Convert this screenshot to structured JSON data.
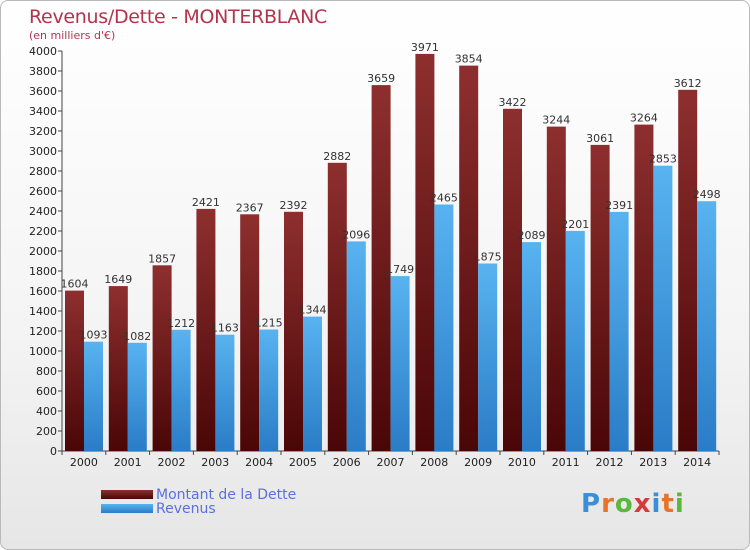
{
  "header": {
    "title": "Revenus/Dette - MONTERBLANC",
    "subtitle": "(en milliers d'€)"
  },
  "chart_data": {
    "type": "bar",
    "categories": [
      "2000",
      "2001",
      "2002",
      "2003",
      "2004",
      "2005",
      "2006",
      "2007",
      "2008",
      "2009",
      "2010",
      "2011",
      "2012",
      "2013",
      "2014"
    ],
    "series": [
      {
        "name": "Montant de la Dette",
        "color": "#7a1e1e",
        "values": [
          1604,
          1649,
          1857,
          2421,
          2367,
          2392,
          2882,
          3659,
          3971,
          3854,
          3422,
          3244,
          3061,
          3264,
          3612
        ]
      },
      {
        "name": "Revenus",
        "color": "#3a9ee6",
        "values": [
          1093,
          1082,
          1212,
          1163,
          1215,
          1344,
          2096,
          1749,
          2465,
          1875,
          2089,
          2201,
          2391,
          2853,
          2498
        ]
      }
    ],
    "ylim": [
      0,
      4000
    ],
    "ytick_step": 200,
    "grid": false,
    "legend_position": "bottom-left"
  },
  "legend": {
    "items": [
      {
        "label": "Montant de la Dette",
        "color": "#7a1e1e"
      },
      {
        "label": "Revenus",
        "color": "#3a9ee6"
      }
    ]
  },
  "brand": {
    "letters": [
      "P",
      "r",
      "o",
      "x",
      "i",
      "t",
      "i"
    ],
    "colors": [
      "#3a8fd8",
      "#e8742a",
      "#5bb83a",
      "#d63a3a",
      "#3a8fd8",
      "#e8742a",
      "#5bb83a"
    ]
  }
}
